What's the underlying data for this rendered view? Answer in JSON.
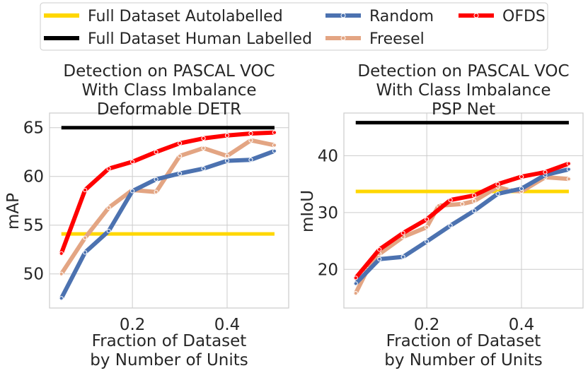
{
  "legend": {
    "entries": [
      {
        "label": "Full Dataset Autolabelled",
        "color": "#ffd700",
        "marker": false
      },
      {
        "label": "Full Dataset Human Labelled",
        "color": "#000000",
        "marker": false
      },
      {
        "label": "Random",
        "color": "#4c72b0",
        "marker": true
      },
      {
        "label": "Freesel",
        "color": "#e3a583",
        "marker": true
      },
      {
        "label": "OFDS",
        "color": "#ff0000",
        "marker": true
      }
    ]
  },
  "chart_data": [
    {
      "type": "line",
      "title": [
        "Detection on PASCAL VOC",
        "With Class Imbalance",
        "Deformable DETR"
      ],
      "xlabel": [
        "Fraction of Dataset",
        "by Number of Units"
      ],
      "ylabel": "mAP",
      "xlim": [
        0.025,
        0.53
      ],
      "ylim": [
        46.5,
        66.5
      ],
      "xticks": [
        0.2,
        0.4
      ],
      "xtick_labels": [
        "0.2",
        "0.4"
      ],
      "yticks": [
        50,
        55,
        60,
        65
      ],
      "ytick_labels": [
        "50",
        "55",
        "60",
        "65"
      ],
      "hlines": [
        {
          "name": "Full Dataset Autolabelled",
          "y": 54.1,
          "x": [
            0.05,
            0.5
          ],
          "color": "#ffd700"
        },
        {
          "name": "Full Dataset Human Labelled",
          "y": 65.0,
          "x": [
            0.05,
            0.5
          ],
          "color": "#000000"
        }
      ],
      "series": [
        {
          "name": "Freesel",
          "color": "#e3a583",
          "x": [
            0.05,
            0.1,
            0.15,
            0.2,
            0.25,
            0.3,
            0.35,
            0.4,
            0.45,
            0.5
          ],
          "values": [
            50.0,
            53.7,
            56.8,
            58.6,
            58.4,
            62.1,
            62.9,
            62.1,
            63.7,
            63.2
          ]
        },
        {
          "name": "Random",
          "color": "#4c72b0",
          "x": [
            0.05,
            0.1,
            0.15,
            0.2,
            0.25,
            0.3,
            0.35,
            0.4,
            0.45,
            0.5
          ],
          "values": [
            47.5,
            52.2,
            54.4,
            58.5,
            59.7,
            60.3,
            60.8,
            61.6,
            61.7,
            62.6
          ]
        },
        {
          "name": "OFDS",
          "color": "#ff0000",
          "x": [
            0.05,
            0.1,
            0.15,
            0.2,
            0.25,
            0.3,
            0.35,
            0.4,
            0.45,
            0.5
          ],
          "values": [
            52.1,
            58.6,
            60.8,
            61.5,
            62.5,
            63.4,
            63.9,
            64.2,
            64.4,
            64.5
          ]
        }
      ]
    },
    {
      "type": "line",
      "title": [
        "Detection on PASCAL VOC",
        "With Class Imbalance",
        "PSP Net"
      ],
      "xlabel": [
        "Fraction of Dataset",
        "by Number of Units"
      ],
      "ylabel": "mIoU",
      "xlim": [
        0.025,
        0.53
      ],
      "ylim": [
        13.2,
        47.5
      ],
      "xticks": [
        0.2,
        0.4
      ],
      "xtick_labels": [
        "0.2",
        "0.4"
      ],
      "yticks": [
        20,
        30,
        40
      ],
      "ytick_labels": [
        "20",
        "30",
        "40"
      ],
      "hlines": [
        {
          "name": "Full Dataset Autolabelled",
          "y": 33.7,
          "x": [
            0.05,
            0.5
          ],
          "color": "#ffd700"
        },
        {
          "name": "Full Dataset Human Labelled",
          "y": 45.8,
          "x": [
            0.05,
            0.5
          ],
          "color": "#000000"
        }
      ],
      "series": [
        {
          "name": "Freesel",
          "color": "#e3a583",
          "x": [
            0.05,
            0.075,
            0.1,
            0.15,
            0.2,
            0.225,
            0.275,
            0.3,
            0.35,
            0.375,
            0.4,
            0.45,
            0.5
          ],
          "values": [
            15.8,
            20.0,
            22.7,
            25.7,
            27.4,
            31.2,
            31.5,
            32.0,
            34.5,
            33.9,
            33.7,
            36.2,
            35.9
          ]
        },
        {
          "name": "Random",
          "color": "#4c72b0",
          "x": [
            0.05,
            0.1,
            0.15,
            0.2,
            0.25,
            0.3,
            0.35,
            0.4,
            0.45,
            0.5
          ],
          "values": [
            17.5,
            21.8,
            22.2,
            24.9,
            27.7,
            30.3,
            33.3,
            34.2,
            36.6,
            37.6
          ]
        },
        {
          "name": "OFDS",
          "color": "#ff0000",
          "x": [
            0.05,
            0.1,
            0.15,
            0.2,
            0.25,
            0.3,
            0.35,
            0.4,
            0.45,
            0.5
          ],
          "values": [
            18.5,
            23.5,
            26.4,
            28.8,
            32.2,
            33.0,
            35.0,
            36.3,
            37.1,
            38.6
          ]
        }
      ]
    }
  ]
}
